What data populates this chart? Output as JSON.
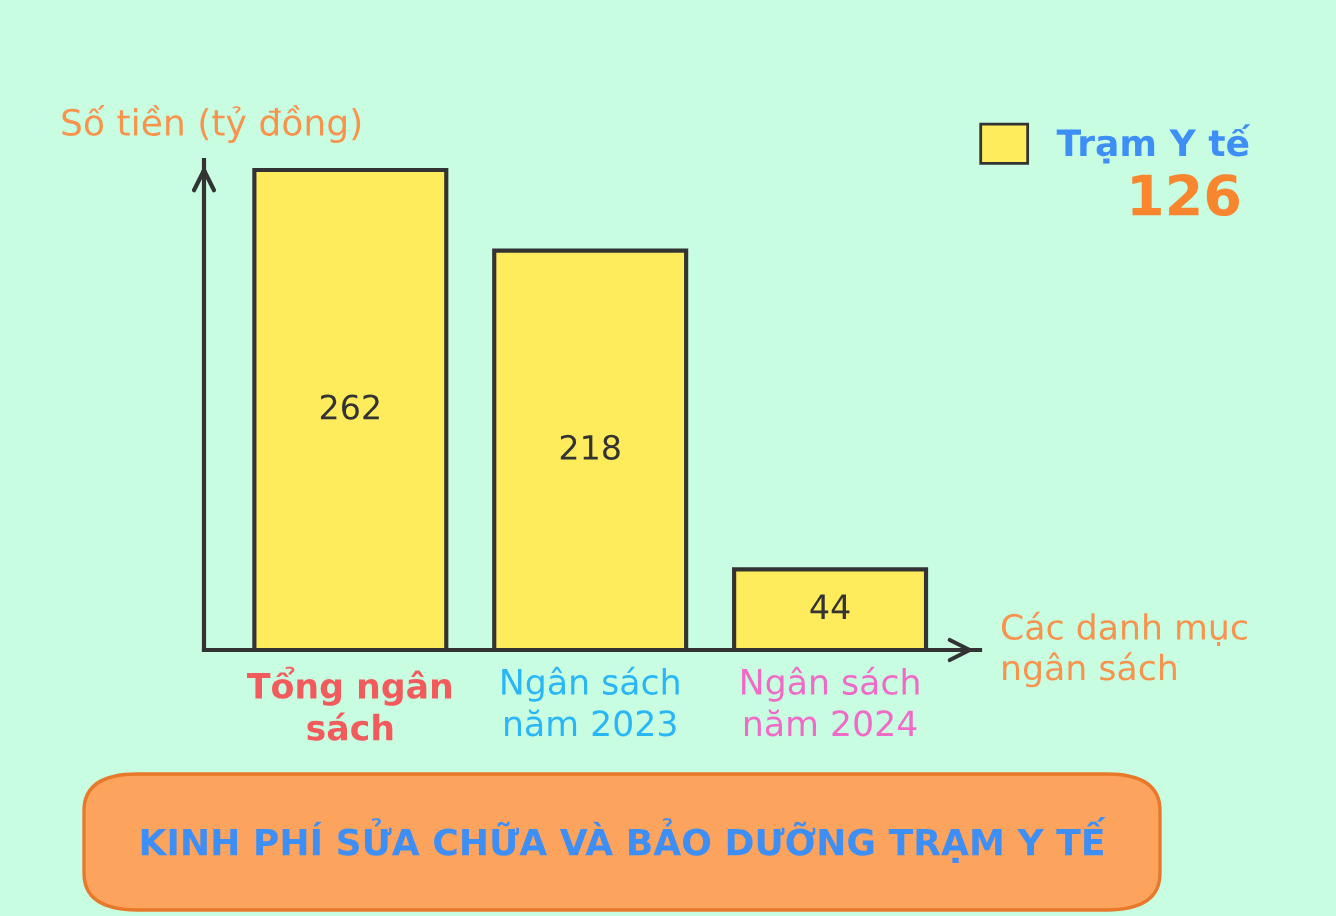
{
  "chart_data": {
    "type": "bar",
    "title": "KINH PHÍ SỬA CHỮA VÀ BẢO DƯỠNG TRẠM Y TẾ",
    "ylabel": "Số tiền (tỷ đồng)",
    "xlabel": "Các danh mục ngân sách",
    "categories": [
      "Tổng ngân sách",
      "Ngân sách năm 2023",
      "Ngân sách năm 2024"
    ],
    "series": [
      {
        "name": "Trạm Y tế",
        "color": "#ffec5c",
        "values": [
          262,
          218,
          44
        ]
      }
    ],
    "data_labels": true,
    "legend": "top right",
    "grid": false,
    "tick_labels": "x",
    "annotations": [
      "126"
    ]
  }
}
